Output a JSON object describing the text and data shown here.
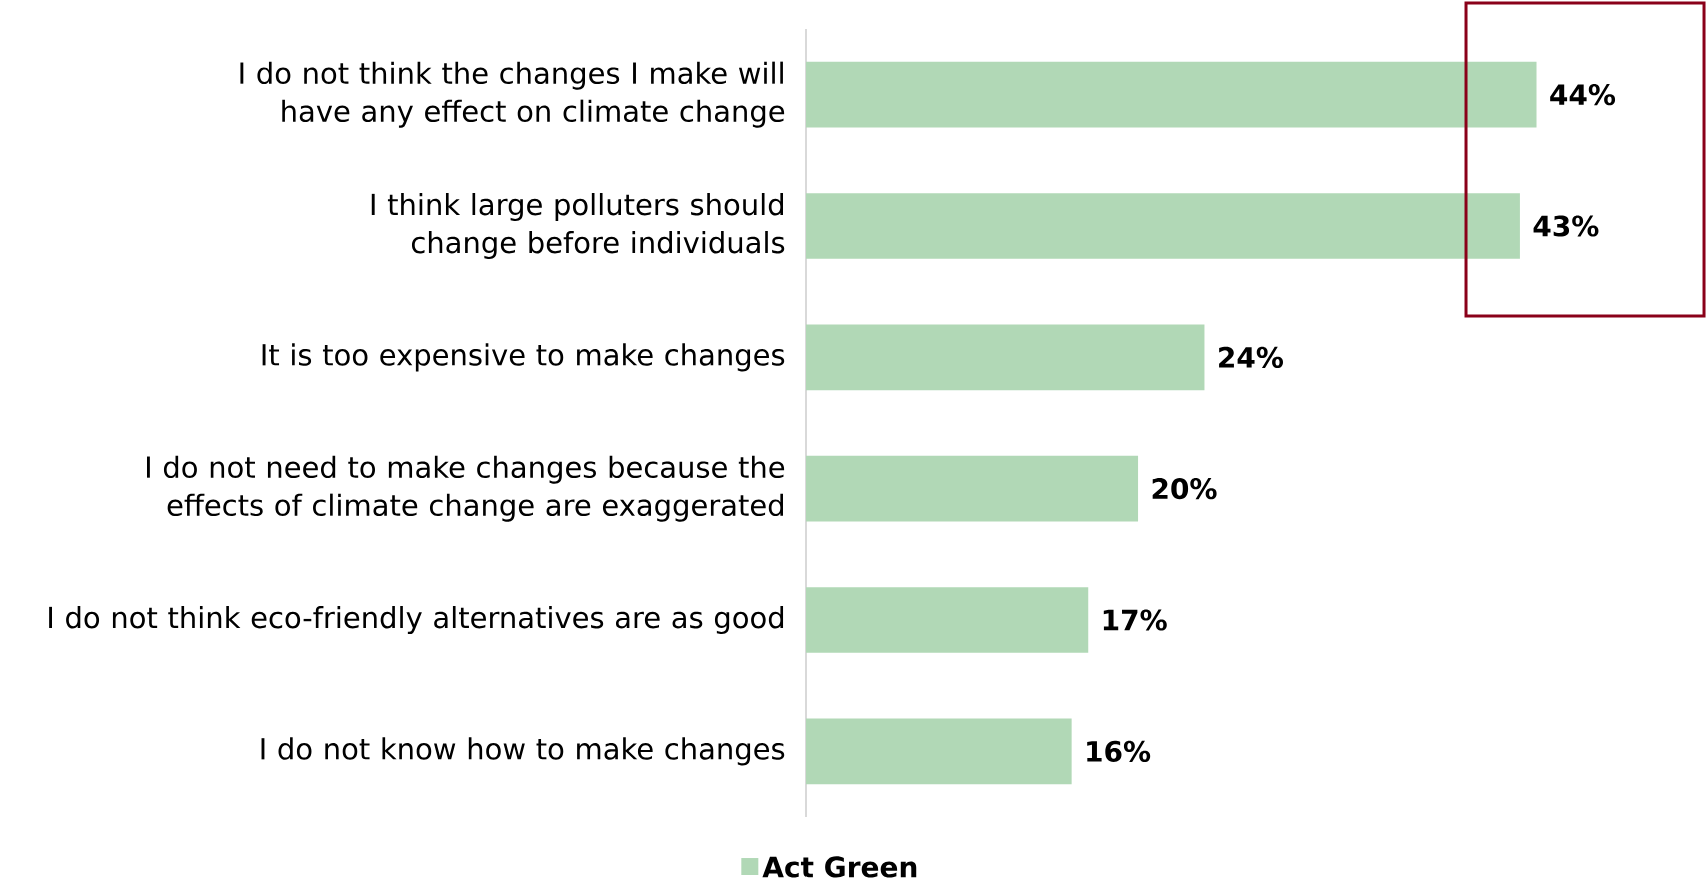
{
  "chart_data": {
    "type": "bar",
    "orientation": "horizontal",
    "categories": [
      "I do not think the changes I make will have any effect on climate change",
      "I think large polluters should change before individuals",
      "It is too expensive to make changes",
      "I do not need to make changes because the effects of climate change are exaggerated",
      "I do not think eco-friendly alternatives are as good",
      "I do not know how to make changes"
    ],
    "series": [
      {
        "name": "Act Green",
        "color": "#b1d8b6",
        "values": [
          44,
          43,
          24,
          20,
          17,
          16
        ],
        "value_labels": [
          "44%",
          "43%",
          "24%",
          "20%",
          "17%",
          "16%"
        ]
      }
    ],
    "legend": "bottom"
  }
}
